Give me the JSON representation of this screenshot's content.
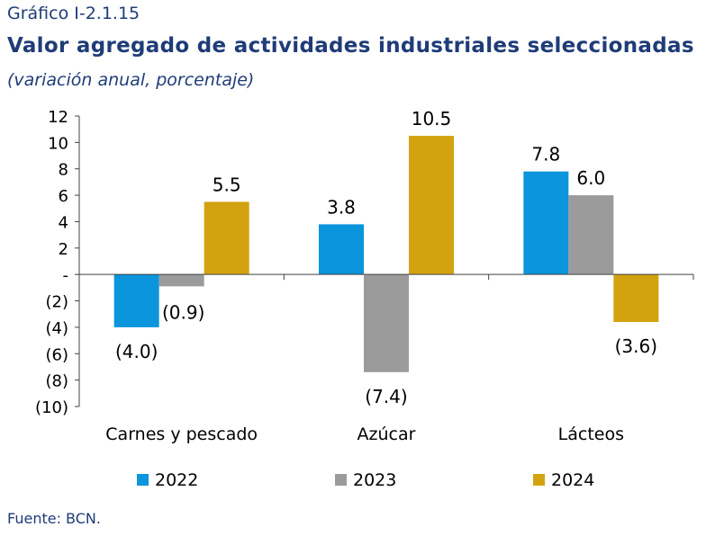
{
  "header": {
    "label": "Gráfico I-2.1.15",
    "title": "Valor agregado de actividades industriales seleccionadas",
    "subtitle": "(variación anual, porcentaje)"
  },
  "source": "Fuente: BCN.",
  "colors": {
    "2022": "#0b95dc",
    "2023": "#9b9b9b",
    "2024": "#d3a20f"
  },
  "chart_data": {
    "type": "bar",
    "categories": [
      "Carnes y pescado",
      "Azúcar",
      "Lácteos"
    ],
    "series": [
      {
        "name": "2022",
        "values": [
          -4.0,
          3.8,
          7.8
        ],
        "labels": [
          "(4.0)",
          "3.8",
          "7.8"
        ]
      },
      {
        "name": "2023",
        "values": [
          -0.9,
          -7.4,
          6.0
        ],
        "labels": [
          "(0.9)",
          "(7.4)",
          "6.0"
        ]
      },
      {
        "name": "2024",
        "values": [
          5.5,
          10.5,
          -3.6
        ],
        "labels": [
          "5.5",
          "10.5",
          "(3.6)"
        ]
      }
    ],
    "ylim": [
      -10,
      12
    ],
    "yticks": [
      12,
      10,
      8,
      6,
      4,
      2,
      0,
      -2,
      -4,
      -6,
      -8,
      -10
    ],
    "ytick_labels": [
      "12",
      "10",
      "8",
      "6",
      "4",
      "2",
      "-",
      "(2)",
      "(4)",
      "(6)",
      "(8)",
      "(10)"
    ],
    "legend_position": "bottom"
  }
}
